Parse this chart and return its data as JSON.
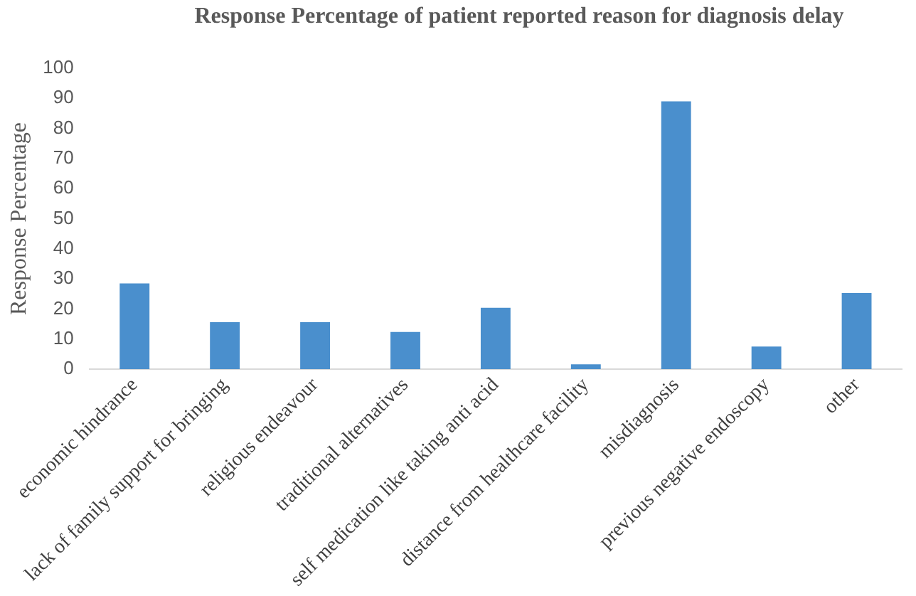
{
  "chart_data": {
    "type": "bar",
    "title": "Response Percentage of patient reported reason for diagnosis delay",
    "ylabel": "Response Percentage",
    "categories": [
      "economic hindrance",
      "lack of family support for bringing",
      "religious endeavour",
      "traditional alternatives",
      "self medication like taking anti acid",
      "distance from healthcare facility",
      "misdiagnosis",
      "previous negative endoscopy",
      "other"
    ],
    "values": [
      28.5,
      15.6,
      15.6,
      12.4,
      20.4,
      1.6,
      89,
      7.5,
      25.3
    ],
    "color": "#4a8fcd",
    "ylim": [
      0,
      100
    ],
    "yticks": [
      0,
      10,
      20,
      30,
      40,
      50,
      60,
      70,
      80,
      90,
      100
    ],
    "grid": false
  }
}
